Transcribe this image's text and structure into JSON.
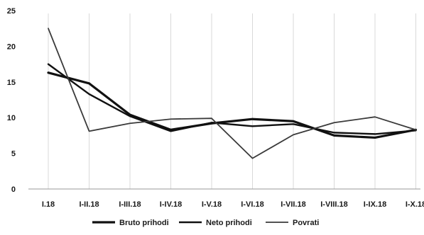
{
  "chart_data": {
    "type": "line",
    "categories": [
      "I.18",
      "I-II.18",
      "I-III.18",
      "I-IV.18",
      "I-V.18",
      "I-VI.18",
      "I-VII.18",
      "I-VIII.18",
      "I-IX.18",
      "I-X.18"
    ],
    "series": [
      {
        "name": "Bruto prihodi",
        "values": [
          16.3,
          14.8,
          10.4,
          8.3,
          9.2,
          9.8,
          9.5,
          7.5,
          7.2,
          8.3
        ],
        "color": "#111111",
        "weight": "thick"
      },
      {
        "name": "Neto prihodi",
        "values": [
          17.5,
          13.3,
          10.2,
          8.1,
          9.3,
          8.8,
          9.1,
          7.9,
          7.7,
          8.2
        ],
        "color": "#111111",
        "weight": "medium"
      },
      {
        "name": "Povrati",
        "values": [
          22.5,
          8.1,
          9.2,
          9.8,
          9.9,
          4.3,
          7.6,
          9.3,
          10.1,
          8.3
        ],
        "color": "#3a3a3a",
        "weight": "thin"
      }
    ],
    "y_ticks": [
      0,
      5,
      10,
      15,
      20,
      25
    ],
    "ylim": [
      0,
      25
    ],
    "grid": "vertical",
    "legend": "bottom"
  }
}
